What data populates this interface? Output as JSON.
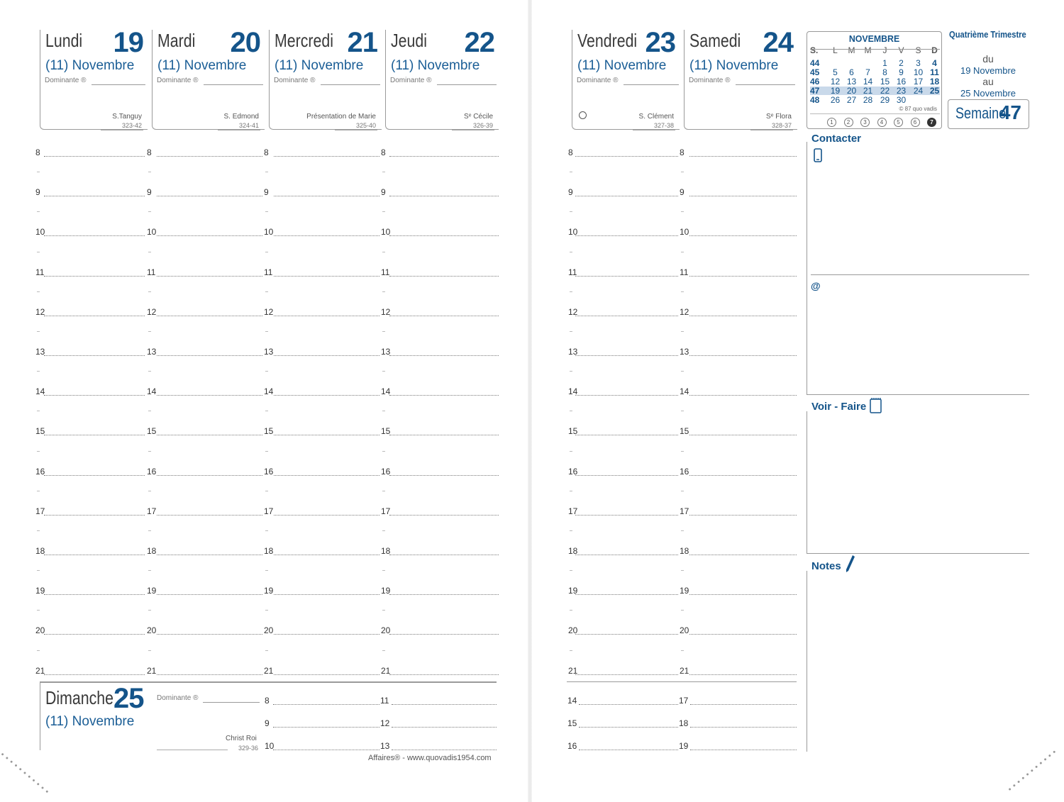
{
  "left_page": {
    "days": [
      {
        "name": "Lundi",
        "number": "19",
        "month": "(11) Novembre",
        "dominante": "Dominante ®",
        "saint": "S.Tanguy",
        "daycount": "323-42"
      },
      {
        "name": "Mardi",
        "number": "20",
        "month": "(11) Novembre",
        "dominante": "Dominante ®",
        "saint": "S. Edmond",
        "daycount": "324-41"
      },
      {
        "name": "Mercredi",
        "number": "21",
        "month": "(11) Novembre",
        "dominante": "Dominante ®",
        "saint": "Présentation de Marie",
        "daycount": "325-40"
      },
      {
        "name": "Jeudi",
        "number": "22",
        "month": "(11) Novembre",
        "dominante": "Dominante ®",
        "saint": "Sᵉ Cécile",
        "daycount": "326-39"
      }
    ],
    "hours": [
      "8",
      "9",
      "10",
      "11",
      "12",
      "13",
      "14",
      "15",
      "16",
      "17",
      "18",
      "19",
      "20",
      "21"
    ],
    "sunday": {
      "name": "Dimanche",
      "number": "25",
      "month": "(11) Novembre",
      "dominante": "Dominante ®",
      "saint": "Christ Roi",
      "daycount": "329-36",
      "hours_col1": [
        "8",
        "9",
        "10"
      ],
      "hours_col2": [
        "11",
        "12",
        "13"
      ]
    },
    "footer": "Affaires® - www.quovadis1954.com"
  },
  "right_page": {
    "days": [
      {
        "name": "Vendredi",
        "number": "23",
        "month": "(11) Novembre",
        "dominante": "Dominante ®",
        "saint": "S. Clément",
        "daycount": "327-38"
      },
      {
        "name": "Samedi",
        "number": "24",
        "month": "(11) Novembre",
        "dominante": "Dominante ®",
        "saint": "Sᵉ Flora",
        "daycount": "328-37"
      }
    ],
    "hours": [
      "8",
      "9",
      "10",
      "11",
      "12",
      "13",
      "14",
      "15",
      "16",
      "17",
      "18",
      "19",
      "20",
      "21"
    ],
    "evening_col1": [
      "14",
      "15",
      "16"
    ],
    "evening_col2": [
      "17",
      "18",
      "19"
    ],
    "mini_calendar": {
      "title": "NOVEMBRE",
      "headers": [
        "S.",
        "L",
        "M",
        "M",
        "J",
        "V",
        "S",
        "D"
      ],
      "rows": [
        [
          "44",
          "",
          "",
          "",
          "1",
          "2",
          "3",
          "4"
        ],
        [
          "45",
          "5",
          "6",
          "7",
          "8",
          "9",
          "10",
          "11"
        ],
        [
          "46",
          "12",
          "13",
          "14",
          "15",
          "16",
          "17",
          "18"
        ],
        [
          "47",
          "19",
          "20",
          "21",
          "22",
          "23",
          "24",
          "25"
        ],
        [
          "48",
          "26",
          "27",
          "28",
          "29",
          "30",
          "",
          ""
        ]
      ],
      "copyright": "© 87 quo vadis",
      "weekday_circles": [
        "1",
        "2",
        "3",
        "4",
        "5",
        "6",
        "7"
      ]
    },
    "quarter": "Quatrième Trimestre",
    "range": {
      "du": "du",
      "start": "19 Novembre",
      "au": "au",
      "end": "25 Novembre"
    },
    "week": {
      "label": "Semaine",
      "number": "47"
    },
    "sections": {
      "contacter": "Contacter",
      "email": "@",
      "voir_faire": "Voir - Faire",
      "notes": "Notes"
    }
  },
  "colors": {
    "accent": "#14548a",
    "text": "#333333",
    "rule": "#9a9a9a"
  }
}
